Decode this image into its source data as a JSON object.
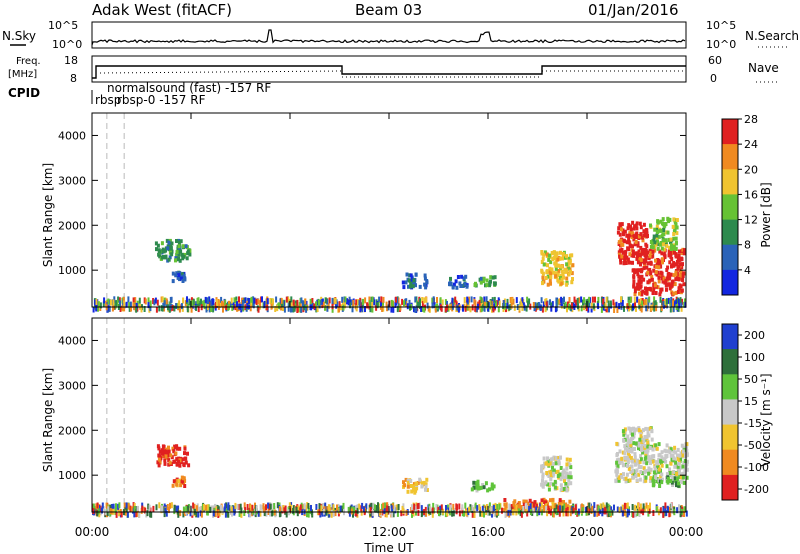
{
  "header": {
    "station": "Adak West (fitACF)",
    "beam": "Beam 03",
    "date": "01/Jan/2016"
  },
  "panels": {
    "sky": {
      "left_label": "N.Sky",
      "right_label": "N.Search",
      "left_ticks": [
        "10^5",
        "10^0"
      ],
      "right_ticks": [
        "10^5",
        "10^0"
      ]
    },
    "freq": {
      "left_label_1": "Freq.",
      "left_label_2": "[MHz]",
      "left_ticks": [
        "18",
        "8"
      ],
      "right_ticks": [
        "60",
        "0"
      ],
      "right_label": "Nave"
    },
    "cpid": {
      "label": "CPID",
      "entry_1": "normalsound (fast) -157 RF",
      "entry_2": "rbsp",
      "entry_3": "rbsp-0 -157 RF"
    }
  },
  "chart_data": [
    {
      "type": "heatmap",
      "name": "power",
      "ylabel": "Slant Range [km]",
      "ylim": [
        180,
        4500
      ],
      "y_ticks": [
        1000,
        2000,
        3000,
        4000
      ],
      "colorbar_label": "Power [dB]",
      "colorbar_ticks": [
        "4",
        "8",
        "12",
        "16",
        "20",
        "24",
        "28"
      ],
      "colorbar_range": [
        0,
        32
      ],
      "colors": [
        "#1226e0",
        "#2a63b8",
        "#2d8a4e",
        "#66c234",
        "#f0c430",
        "#f08a20",
        "#e02020"
      ],
      "x_ticks": [
        "00:00",
        "04:00",
        "08:00",
        "12:00",
        "16:00",
        "20:00",
        "00:00"
      ],
      "xlim": [
        0,
        24
      ],
      "regions": [
        {
          "t0": 2.5,
          "t1": 3.9,
          "r0": 1250,
          "r1": 1700,
          "level": 2
        },
        {
          "t0": 3.2,
          "t1": 3.7,
          "r0": 800,
          "r1": 1000,
          "level": 1
        },
        {
          "t0": 4.1,
          "t1": 5.7,
          "r0": 250,
          "r1": 330,
          "level": 2
        },
        {
          "t0": 12.5,
          "t1": 13.5,
          "r0": 650,
          "r1": 950,
          "level": 1
        },
        {
          "t0": 14.3,
          "t1": 15.1,
          "r0": 650,
          "r1": 900,
          "level": 1
        },
        {
          "t0": 15.3,
          "t1": 16.3,
          "r0": 700,
          "r1": 900,
          "level": 2
        },
        {
          "t0": 18.1,
          "t1": 19.4,
          "r0": 700,
          "r1": 1450,
          "level": 4
        },
        {
          "t0": 21.2,
          "t1": 22.4,
          "r0": 1200,
          "r1": 2100,
          "level": 6
        },
        {
          "t0": 21.8,
          "t1": 23.9,
          "r0": 500,
          "r1": 1500,
          "level": 6
        },
        {
          "t0": 22.5,
          "t1": 23.6,
          "r0": 1500,
          "r1": 2200,
          "level": 3
        },
        {
          "t0": 0,
          "t1": 24,
          "r0": 180,
          "r1": 420,
          "level": 1
        }
      ]
    },
    {
      "type": "heatmap",
      "name": "velocity",
      "ylabel": "Slant Range [km]",
      "ylim": [
        180,
        4500
      ],
      "y_ticks": [
        1000,
        2000,
        3000,
        4000
      ],
      "colorbar_label": "Velocity [m s⁻¹]",
      "colorbar_ticks": [
        "200",
        "100",
        "50",
        "15",
        "-15",
        "-50",
        "-100",
        "-200"
      ],
      "colors": [
        "#2040d0",
        "#2e6f3a",
        "#5fc43a",
        "#c8c8c8",
        "#f0c430",
        "#f08a20",
        "#e02020"
      ],
      "x_ticks": [
        "00:00",
        "04:00",
        "08:00",
        "12:00",
        "16:00",
        "20:00",
        "00:00"
      ],
      "xlabel": "Time UT",
      "xlim": [
        0,
        24
      ],
      "regions": [
        {
          "t0": 2.6,
          "t1": 3.9,
          "r0": 1250,
          "r1": 1700,
          "level": 6
        },
        {
          "t0": 3.2,
          "t1": 3.7,
          "r0": 800,
          "r1": 1000,
          "level": 5
        },
        {
          "t0": 4.1,
          "t1": 5.7,
          "r0": 250,
          "r1": 330,
          "level": 3
        },
        {
          "t0": 12.5,
          "t1": 13.5,
          "r0": 650,
          "r1": 950,
          "level": 4
        },
        {
          "t0": 15.3,
          "t1": 16.3,
          "r0": 700,
          "r1": 900,
          "level": 2
        },
        {
          "t0": 16.5,
          "t1": 19.5,
          "r0": 250,
          "r1": 500,
          "level": 5
        },
        {
          "t0": 18.1,
          "t1": 19.3,
          "r0": 700,
          "r1": 1450,
          "level": 3
        },
        {
          "t0": 21.1,
          "t1": 24.0,
          "r0": 900,
          "r1": 1750,
          "level": 3
        },
        {
          "t0": 21.4,
          "t1": 22.6,
          "r0": 1700,
          "r1": 2100,
          "level": 3
        },
        {
          "t0": 22.6,
          "t1": 23.9,
          "r0": 800,
          "r1": 1000,
          "level": 2
        },
        {
          "t0": 0,
          "t1": 24,
          "r0": 180,
          "r1": 400,
          "level": 5
        }
      ]
    }
  ]
}
